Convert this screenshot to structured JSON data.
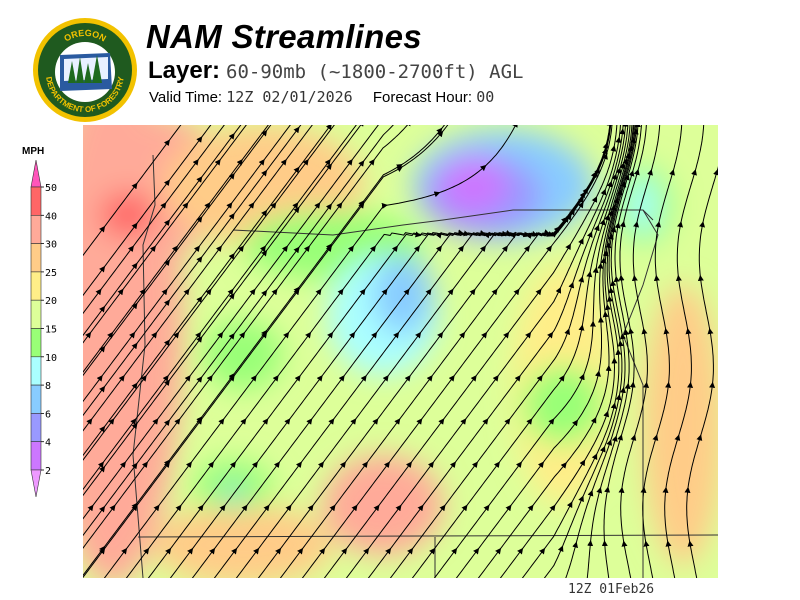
{
  "header": {
    "title": "NAM Streamlines",
    "layer_label": "Layer:",
    "layer_value": "60-90mb (~1800-2700ft) AGL",
    "valid_time_label": "Valid Time:",
    "valid_time_value": "12Z 02/01/2026",
    "forecast_hour_label": "Forecast Hour:",
    "forecast_hour_value": "00"
  },
  "logo": {
    "text_top": "OREGON",
    "text_bottom": "DEPARTMENT OF FORESTRY"
  },
  "legend": {
    "unit": "MPH",
    "breaks": [
      "50",
      "40",
      "30",
      "25",
      "20",
      "15",
      "10",
      "8",
      "6",
      "4",
      "2"
    ],
    "colors": [
      "#ff6666",
      "#ffaa99",
      "#ffcc88",
      "#ffee88",
      "#ddff99",
      "#99ff77",
      "#aaffff",
      "#88ccff",
      "#9999ff",
      "#cc77ff"
    ],
    "top_arrow_color": "#ff55bb",
    "bottom_arrow_color": "#ee99ff"
  },
  "map": {
    "base_color": "#ddff99",
    "streamline_color": "#000000"
  },
  "footer": {
    "stamp": "12Z 01Feb26"
  }
}
